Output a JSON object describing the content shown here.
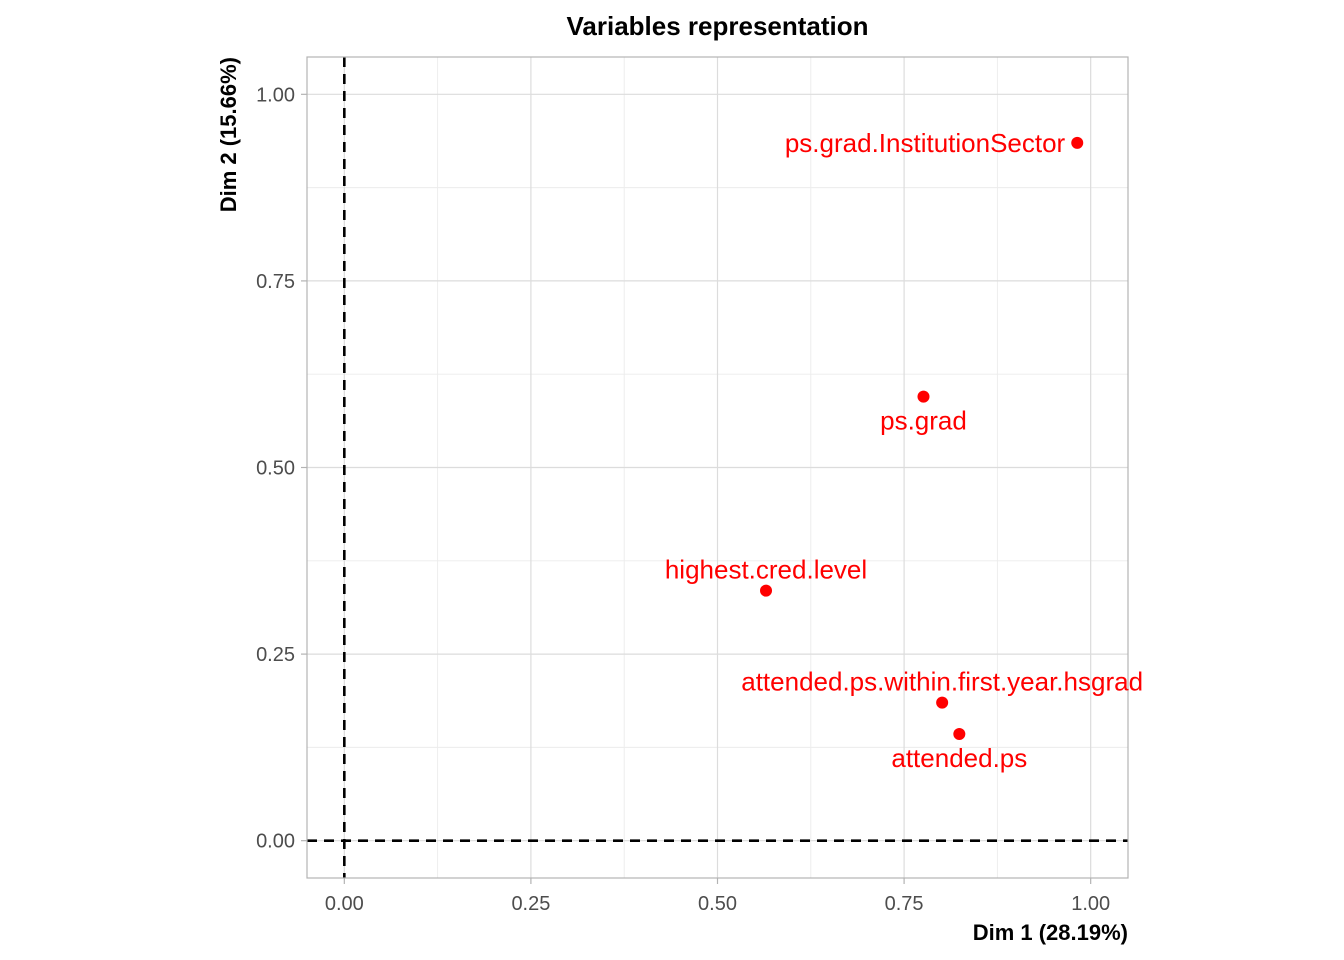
{
  "chart_data": {
    "type": "scatter",
    "title": "Variables representation",
    "xlabel": "Dim 1 (28.19%)",
    "ylabel": "Dim 2 (15.66%)",
    "xlim": [
      -0.05,
      1.05
    ],
    "ylim": [
      -0.05,
      1.05
    ],
    "x_ticks": [
      0.0,
      0.25,
      0.5,
      0.75,
      1.0
    ],
    "y_ticks": [
      0.0,
      0.25,
      0.5,
      0.75,
      1.0
    ],
    "x_tick_labels": [
      "0.00",
      "0.25",
      "0.50",
      "0.75",
      "1.00"
    ],
    "y_tick_labels": [
      "0.00",
      "0.25",
      "0.50",
      "0.75",
      "1.00"
    ],
    "grid": true,
    "reference_lines": {
      "x": 0,
      "y": 0,
      "style": "dashed"
    },
    "point_color": "#ff0000",
    "points": [
      {
        "label": "ps.grad.InstitutionSector",
        "x": 0.982,
        "y": 0.935,
        "label_position": "left"
      },
      {
        "label": "ps.grad",
        "x": 0.776,
        "y": 0.595,
        "label_position": "below"
      },
      {
        "label": "highest.cred.level",
        "x": 0.565,
        "y": 0.335,
        "label_position": "above"
      },
      {
        "label": "attended.ps.within.first.year.hsgrad",
        "x": 0.801,
        "y": 0.185,
        "label_position": "above"
      },
      {
        "label": "attended.ps",
        "x": 0.824,
        "y": 0.143,
        "label_position": "below"
      }
    ]
  }
}
